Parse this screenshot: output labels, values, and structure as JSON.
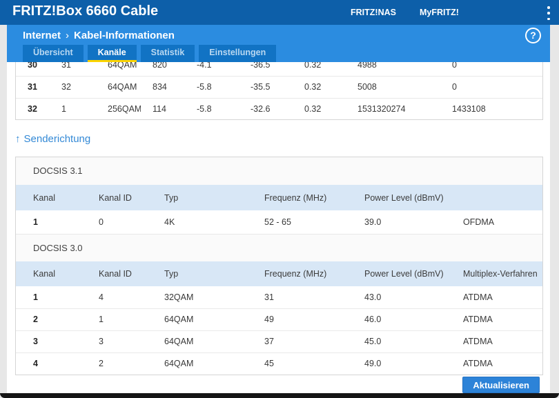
{
  "header": {
    "title": "FRITZ!Box 6660 Cable",
    "links": [
      {
        "label": "FRITZ!NAS"
      },
      {
        "label": "MyFRITZ!"
      }
    ],
    "menu_icon": "kebab-menu-icon"
  },
  "breadcrumb": {
    "section": "Internet",
    "separator": "›",
    "page": "Kabel-Informationen"
  },
  "help_icon": "?",
  "tabs": [
    {
      "label": "Übersicht",
      "active": false
    },
    {
      "label": "Kanäle",
      "active": true
    },
    {
      "label": "Statistik",
      "active": false
    },
    {
      "label": "Einstellungen",
      "active": false
    }
  ],
  "receive_table": {
    "rows": [
      [
        "30",
        "31",
        "64QAM",
        "820",
        "-4.1",
        "-36.5",
        "0.32",
        "4988",
        "0"
      ],
      [
        "31",
        "32",
        "64QAM",
        "834",
        "-5.8",
        "-35.5",
        "0.32",
        "5008",
        "0"
      ],
      [
        "32",
        "1",
        "256QAM",
        "114",
        "-5.8",
        "-32.6",
        "0.32",
        "1531320274",
        "1433108"
      ]
    ]
  },
  "upstream": {
    "arrow": "↑",
    "label": "Senderichtung"
  },
  "docsis31": {
    "title": "DOCSIS 3.1",
    "headers": [
      "Kanal",
      "Kanal ID",
      "Typ",
      "Frequenz (MHz)",
      "Power Level (dBmV)",
      ""
    ],
    "rows": [
      [
        "1",
        "0",
        "4K",
        "52 - 65",
        "39.0",
        "OFDMA"
      ]
    ]
  },
  "docsis30": {
    "title": "DOCSIS 3.0",
    "headers": [
      "Kanal",
      "Kanal ID",
      "Typ",
      "Frequenz (MHz)",
      "Power Level (dBmV)",
      "Multiplex-Verfahren"
    ],
    "rows": [
      [
        "1",
        "4",
        "32QAM",
        "31",
        "43.0",
        "ATDMA"
      ],
      [
        "2",
        "1",
        "64QAM",
        "49",
        "46.0",
        "ATDMA"
      ],
      [
        "3",
        "3",
        "64QAM",
        "37",
        "45.0",
        "ATDMA"
      ],
      [
        "4",
        "2",
        "64QAM",
        "45",
        "49.0",
        "ATDMA"
      ]
    ]
  },
  "footer": {
    "refresh_label": "Aktualisieren"
  },
  "colors": {
    "topbar": "#0d5fa9",
    "panel_blue": "#2b8ce0",
    "tab_blue": "#1173c4",
    "active_tab_underline": "#fcd400",
    "table_header_bg": "#d8e7f6",
    "accent_link_blue": "#3389d6",
    "button_blue": "#2d83d8",
    "page_bg": "#e7e7e7"
  }
}
